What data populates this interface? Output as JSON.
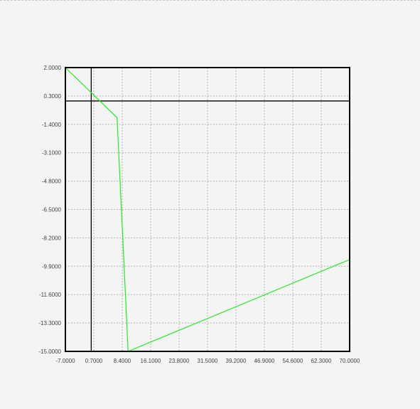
{
  "chart_data": {
    "type": "line",
    "title": "",
    "xlabel": "",
    "ylabel": "",
    "xlim": [
      -7.0,
      70.0
    ],
    "ylim": [
      -15.0,
      2.0
    ],
    "x_ticks": [
      -7.0,
      0.7,
      8.4,
      16.1,
      23.8,
      31.5,
      39.2,
      46.9,
      54.6,
      62.3,
      70.0
    ],
    "y_ticks": [
      2.0,
      0.3,
      -1.4,
      -3.1,
      -4.8,
      -6.5,
      -8.2,
      -9.9,
      -11.6,
      -13.3,
      -15.0
    ],
    "x_tick_labels": [
      "-7.0000",
      "0.7000",
      "8.4000",
      "16.1000",
      "23.8000",
      "31.5000",
      "39.2000",
      "46.9000",
      "54.6000",
      "62.3000",
      "70.0000"
    ],
    "y_tick_labels": [
      "2.0000",
      "0.3000",
      "-1.4000",
      "-3.1000",
      "-4.8000",
      "-6.5000",
      "-8.2000",
      "-9.9000",
      "-11.6000",
      "-13.3000",
      "-15.0000"
    ],
    "grid": true,
    "reference_lines": {
      "x": 0.0,
      "y": 0.0
    },
    "series": [
      {
        "color": "#22ee22",
        "x": [
          -7.0,
          7.0,
          10.0,
          70.0
        ],
        "y": [
          2.0,
          -1.0,
          -15.0,
          -9.5
        ]
      }
    ]
  }
}
